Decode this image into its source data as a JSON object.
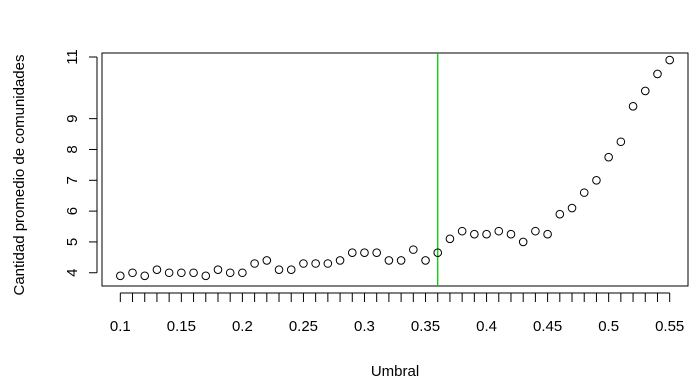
{
  "chart_data": {
    "type": "scatter",
    "xlabel": "Umbral",
    "ylabel": "Cantidad promedio de comunidades",
    "title": "",
    "xlim": [
      0.085,
      0.565
    ],
    "ylim": [
      3.57,
      11.13
    ],
    "x_ticks": [
      0.1,
      0.15,
      0.2,
      0.25,
      0.3,
      0.35,
      0.4,
      0.45,
      0.5,
      0.55
    ],
    "x_tick_labels": [
      "0.1",
      "0.15",
      "0.2",
      "0.25",
      "0.3",
      "0.35",
      "0.4",
      "0.45",
      "0.5",
      "0.55"
    ],
    "x_minor_ticks": [
      0.1,
      0.11,
      0.12,
      0.13,
      0.14,
      0.15,
      0.16,
      0.17,
      0.18,
      0.19,
      0.2,
      0.21,
      0.22,
      0.23,
      0.24,
      0.25,
      0.26,
      0.27,
      0.28,
      0.29,
      0.3,
      0.31,
      0.32,
      0.33,
      0.34,
      0.35,
      0.36,
      0.37,
      0.38,
      0.39,
      0.4,
      0.41,
      0.42,
      0.43,
      0.44,
      0.45,
      0.46,
      0.47,
      0.48,
      0.49,
      0.5,
      0.51,
      0.52,
      0.53,
      0.54,
      0.55
    ],
    "y_ticks": [
      4,
      5,
      6,
      7,
      8,
      9,
      11
    ],
    "y_tick_labels": [
      "4",
      "5",
      "6",
      "7",
      "8",
      "9",
      "11"
    ],
    "vline": {
      "x": 0.36,
      "color": "#00cc00"
    },
    "point_color": "#000000",
    "points": [
      {
        "x": 0.1,
        "y": 3.9
      },
      {
        "x": 0.11,
        "y": 4.0
      },
      {
        "x": 0.12,
        "y": 3.9
      },
      {
        "x": 0.13,
        "y": 4.1
      },
      {
        "x": 0.14,
        "y": 4.0
      },
      {
        "x": 0.15,
        "y": 4.0
      },
      {
        "x": 0.16,
        "y": 4.0
      },
      {
        "x": 0.17,
        "y": 3.9
      },
      {
        "x": 0.18,
        "y": 4.1
      },
      {
        "x": 0.19,
        "y": 4.0
      },
      {
        "x": 0.2,
        "y": 4.0
      },
      {
        "x": 0.21,
        "y": 4.3
      },
      {
        "x": 0.22,
        "y": 4.4
      },
      {
        "x": 0.23,
        "y": 4.1
      },
      {
        "x": 0.24,
        "y": 4.1
      },
      {
        "x": 0.25,
        "y": 4.3
      },
      {
        "x": 0.26,
        "y": 4.3
      },
      {
        "x": 0.27,
        "y": 4.3
      },
      {
        "x": 0.28,
        "y": 4.4
      },
      {
        "x": 0.29,
        "y": 4.65
      },
      {
        "x": 0.3,
        "y": 4.65
      },
      {
        "x": 0.31,
        "y": 4.65
      },
      {
        "x": 0.32,
        "y": 4.4
      },
      {
        "x": 0.33,
        "y": 4.4
      },
      {
        "x": 0.34,
        "y": 4.75
      },
      {
        "x": 0.35,
        "y": 4.4
      },
      {
        "x": 0.36,
        "y": 4.65
      },
      {
        "x": 0.37,
        "y": 5.1
      },
      {
        "x": 0.38,
        "y": 5.35
      },
      {
        "x": 0.39,
        "y": 5.25
      },
      {
        "x": 0.4,
        "y": 5.25
      },
      {
        "x": 0.41,
        "y": 5.35
      },
      {
        "x": 0.42,
        "y": 5.25
      },
      {
        "x": 0.43,
        "y": 5.0
      },
      {
        "x": 0.44,
        "y": 5.35
      },
      {
        "x": 0.45,
        "y": 5.25
      },
      {
        "x": 0.46,
        "y": 5.9
      },
      {
        "x": 0.47,
        "y": 6.1
      },
      {
        "x": 0.48,
        "y": 6.6
      },
      {
        "x": 0.49,
        "y": 7.0
      },
      {
        "x": 0.5,
        "y": 7.75
      },
      {
        "x": 0.51,
        "y": 8.25
      },
      {
        "x": 0.52,
        "y": 9.4
      },
      {
        "x": 0.53,
        "y": 9.9
      },
      {
        "x": 0.54,
        "y": 10.45
      },
      {
        "x": 0.55,
        "y": 10.9
      }
    ]
  }
}
